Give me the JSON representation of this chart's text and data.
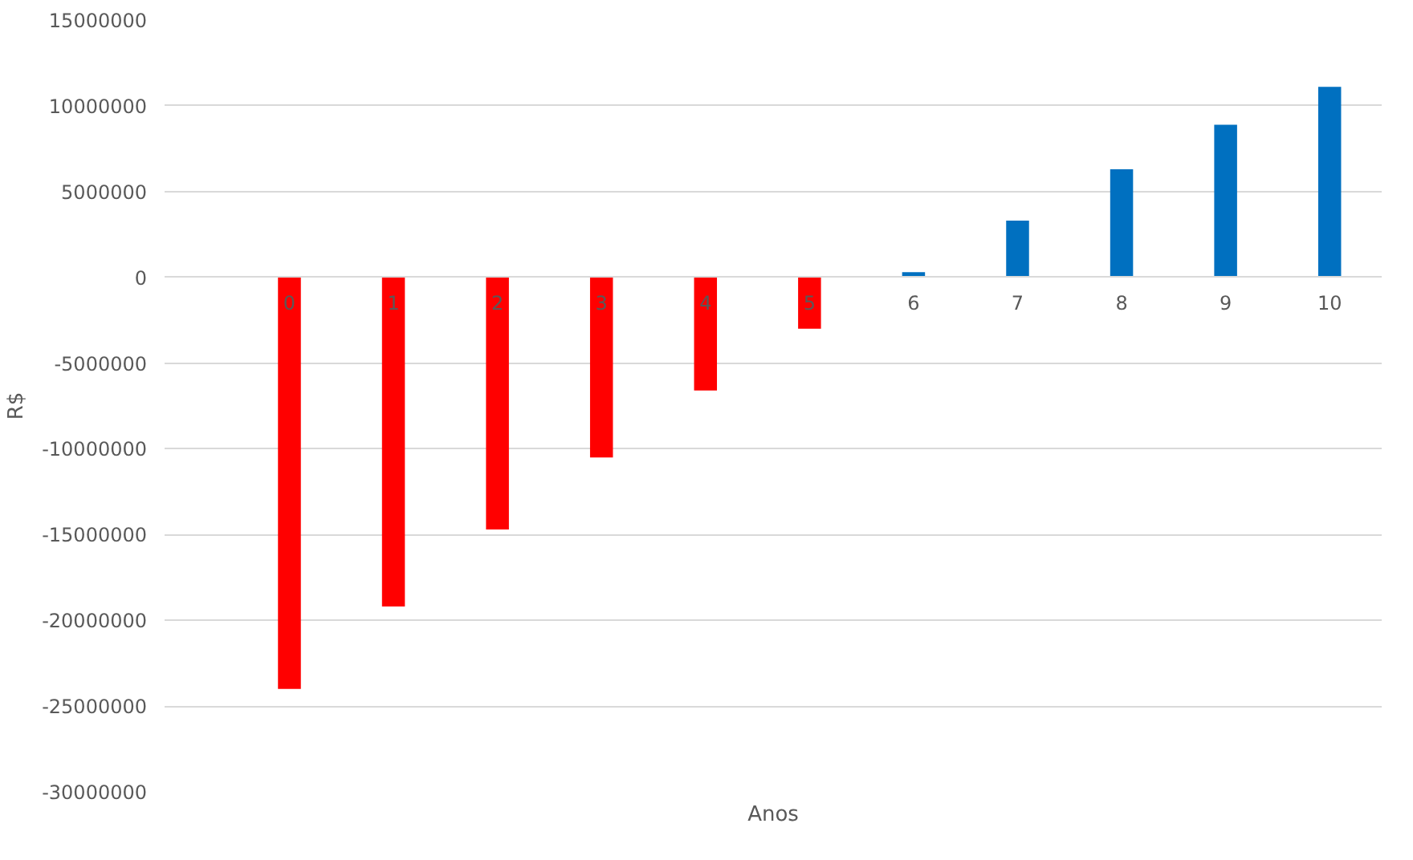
{
  "chart_data": {
    "type": "bar",
    "xlabel": "Anos",
    "ylabel": "R$",
    "categories": [
      "0",
      "1",
      "2",
      "3",
      "4",
      "5",
      "6",
      "7",
      "8",
      "9",
      "10"
    ],
    "values": [
      -24000000,
      -19200000,
      -14700000,
      -10500000,
      -6600000,
      -3000000,
      300000,
      3300000,
      6300000,
      8900000,
      11100000
    ],
    "colors": [
      "#ff0000",
      "#ff0000",
      "#ff0000",
      "#ff0000",
      "#ff0000",
      "#ff0000",
      "#0070c0",
      "#0070c0",
      "#0070c0",
      "#0070c0",
      "#0070c0"
    ],
    "ylim": [
      -30000000,
      15000000
    ],
    "yticks": [
      -30000000,
      -25000000,
      -20000000,
      -15000000,
      -10000000,
      -5000000,
      0,
      5000000,
      10000000,
      15000000
    ],
    "grid": "y"
  }
}
